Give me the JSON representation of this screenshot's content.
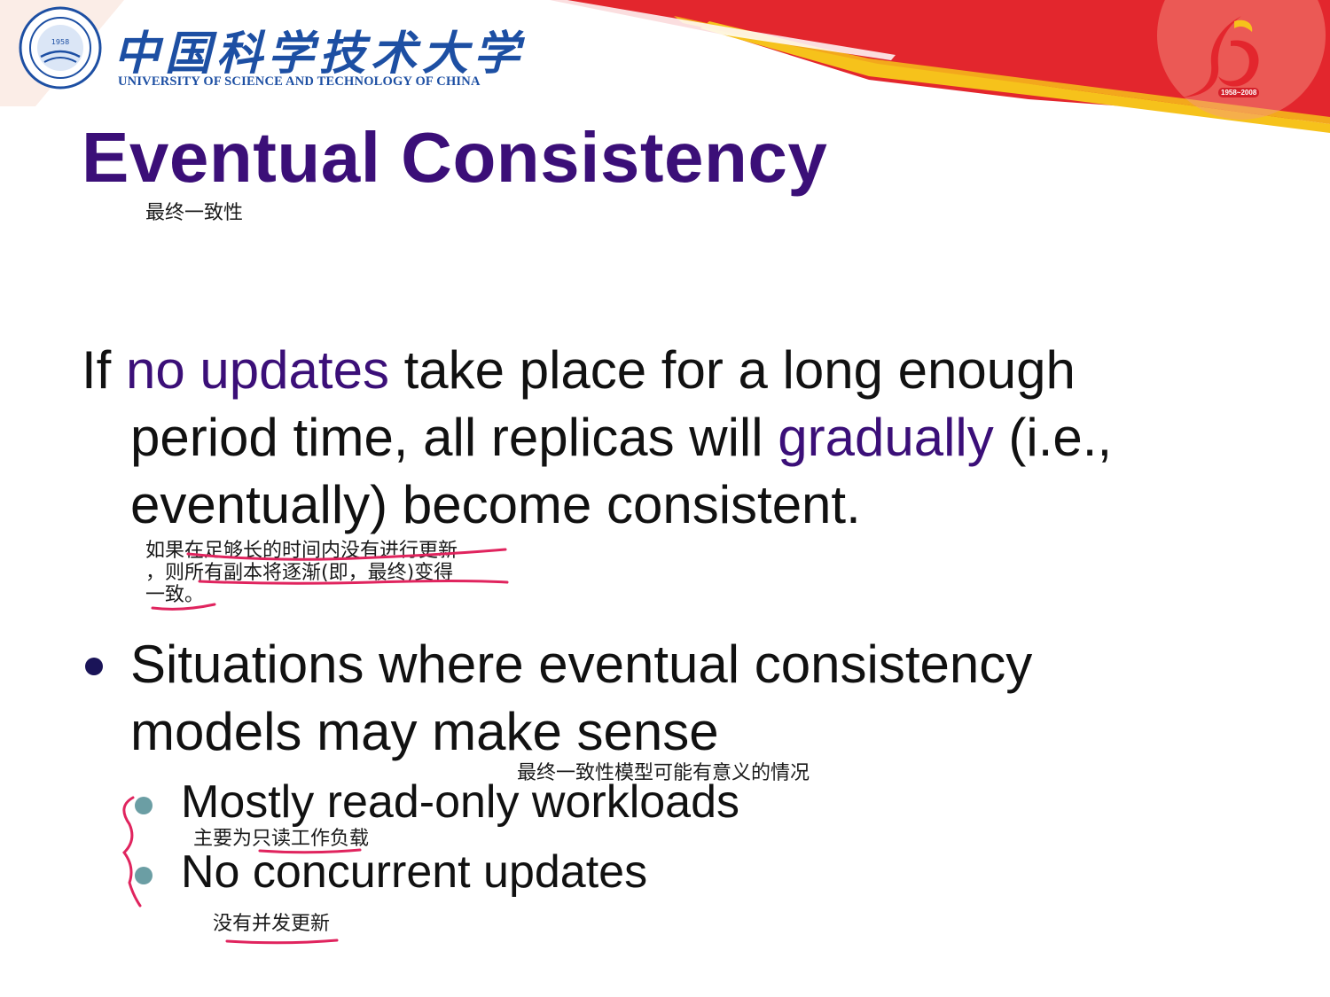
{
  "header": {
    "logo_cn": "中国科学技术大学",
    "logo_en": "UNIVERSITY OF SCIENCE AND TECHNOLOGY OF CHINA",
    "seal_year": "1958",
    "anniversary_years": "1958~2008",
    "seal_icon": "ustc-seal-icon",
    "anniversary_icon": "50th-anniversary-emblem-icon",
    "colors": {
      "band_red": "#e3262d",
      "band_yellow": "#f6c21b",
      "logo_blue": "#1d4fa3"
    }
  },
  "slide": {
    "title": "Eventual Consistency",
    "title_note": "最终一致性",
    "title_color": "#3b0f78",
    "paragraph": {
      "line1": {
        "part1": "If ",
        "highlight": "no updates",
        "part2": " take place for a long enough"
      },
      "line2": {
        "part1": "period time, all replicas will ",
        "highlight": "gradually",
        "part2": " (i.e.,"
      },
      "line3": "eventually) become consistent.",
      "note_lines": [
        "如果在足够长的时间内没有进行更新",
        "，则所有副本将逐渐(即，最终)变得",
        "一致。"
      ]
    },
    "bullet": {
      "line1": "Situations where eventual consistency",
      "line2": "models may make sense",
      "note": "最终一致性模型可能有意义的情况",
      "sub_items": [
        {
          "text": "Mostly read-only workloads",
          "note": "主要为只读工作负载"
        },
        {
          "text": "No concurrent updates",
          "note": "没有并发更新"
        }
      ]
    },
    "annotation_ink_color": "#e0245e"
  }
}
